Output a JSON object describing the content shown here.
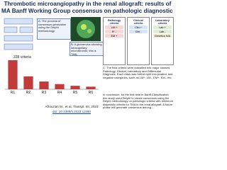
{
  "header": {
    "title_lines": [
      "Thrombotic microangiopathy in the renal allograft: results of",
      "MA Banff Working Group consensus on pathologic diagnostic cri"
    ]
  },
  "panel_a": {
    "caption": "A: The process of consensus generation using the Delphi methodology"
  },
  "panel_b": {
    "caption": "B: A glomerulus showing intracapillary microthrombi; this is TMA."
  },
  "bar_chart": {
    "label": "338 criteria",
    "categories": [
      "R1",
      "R2",
      "R3",
      "R4",
      "R5",
      "R6"
    ],
    "values": [
      338,
      150,
      90,
      60,
      40,
      30
    ],
    "ylim": [
      0,
      338
    ],
    "color": "#c23b3b"
  },
  "criteria": {
    "pathology": [
      "Pathology criteria",
      "LM +",
      "IF -",
      "EM +"
    ],
    "clinical": [
      "Clinical criteria",
      "Clin +",
      "Clin -"
    ],
    "laboratory": [
      "Laboratory criteria",
      "Lab +",
      "Lab -",
      "Genetics N/A"
    ]
  },
  "panel_c": {
    "caption": "C: The final criteria were classified into major classes: Pathology, Clinical, Laboratory and Differential Diagnosis. Each class was further split into positive and negative categories, such as LM+, LM-, EM+, EM-, etc."
  },
  "conclusion": "In conclusion, for the first time in Banff Classification, this study used Delphi to create consensus using the Delphi methodology on pathologic criteria with minimum diagnostic criteria for TMA in the renal allograft. A future phase will generate consensus among ...",
  "footer": {
    "citation": "Afrouzian M., et al. Transpl. Int. 2023",
    "doi": "doi: 10.3389/ti.2023.11590"
  }
}
